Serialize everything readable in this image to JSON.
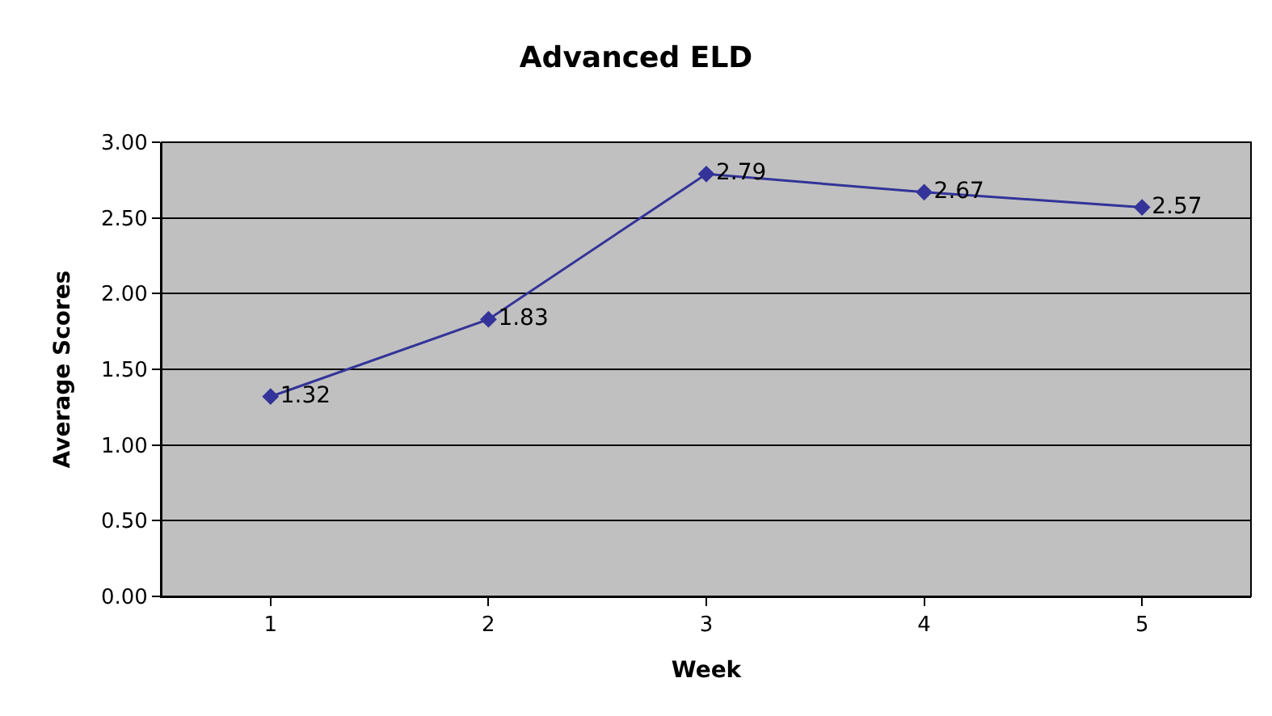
{
  "chart_data": {
    "type": "line",
    "title": "Advanced ELD",
    "xlabel": "Week",
    "ylabel": "Average Scores",
    "categories": [
      "1",
      "2",
      "3",
      "4",
      "5"
    ],
    "series": [
      {
        "color": "#333399",
        "values": [
          1.32,
          1.83,
          2.79,
          2.67,
          2.57
        ],
        "value_labels": [
          "1.32",
          "1.83",
          "2.79",
          "2.67",
          "2.57"
        ]
      }
    ],
    "ylim": [
      0,
      3
    ],
    "yticks": [
      {
        "value": 0,
        "label": "0.00"
      },
      {
        "value": 0.5,
        "label": "0.50"
      },
      {
        "value": 1,
        "label": "1.00"
      },
      {
        "value": 1.5,
        "label": "1.50"
      },
      {
        "value": 2,
        "label": "2.00"
      },
      {
        "value": 2.5,
        "label": "2.50"
      },
      {
        "value": 3,
        "label": "3.00"
      }
    ],
    "grid": "y",
    "legend": false,
    "marker": "diamond",
    "line_style": "solid"
  }
}
